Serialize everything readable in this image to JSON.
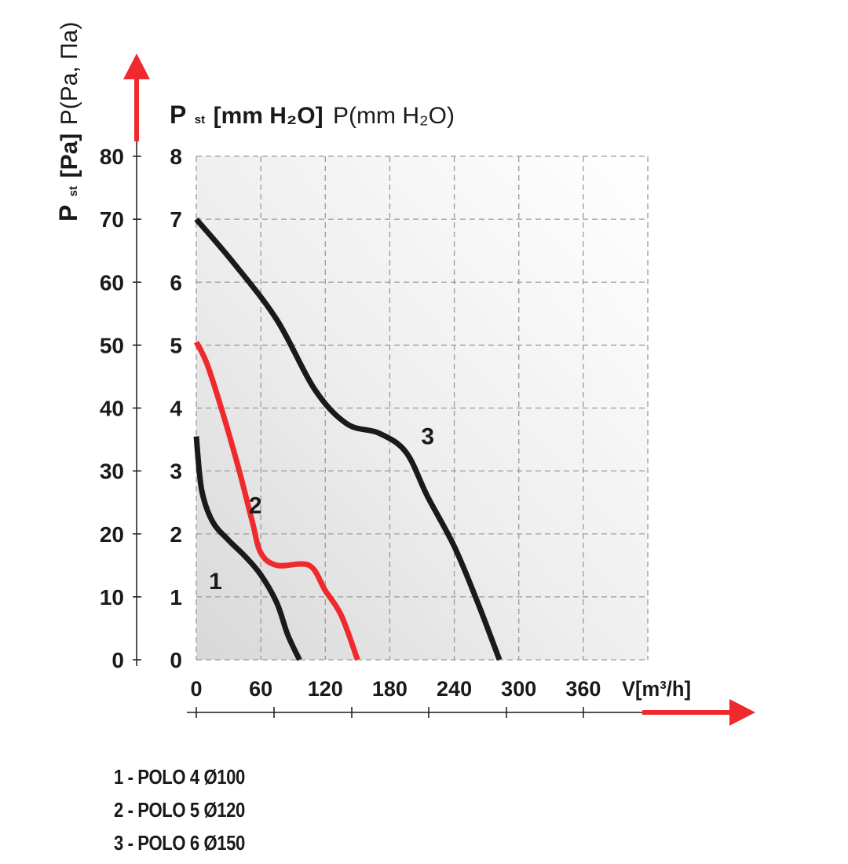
{
  "chart_data": {
    "type": "line",
    "x_axis": {
      "label": "V[m³/h]",
      "ticks": [
        "0",
        "60",
        "120",
        "180",
        "240",
        "300",
        "360"
      ],
      "range": [
        0,
        420
      ]
    },
    "y_axis_left": {
      "label_main": "P",
      "label_sub": "st",
      "label_bracket": "[Pa]",
      "label_extra": "P(Pa, Па)",
      "ticks": [
        "0",
        "10",
        "20",
        "30",
        "40",
        "50",
        "60",
        "70",
        "80"
      ],
      "range": [
        0,
        80
      ]
    },
    "y_axis_right": {
      "label_main": "P",
      "label_sub": "st",
      "label_bracket": "[mm H₂O]",
      "label_extra": "P(mm H₂O)",
      "ticks": [
        "0",
        "1",
        "2",
        "3",
        "4",
        "5",
        "6",
        "7",
        "8"
      ],
      "range": [
        0,
        8
      ]
    },
    "grid": true,
    "series": [
      {
        "name": "1",
        "color": "#1a1a1a",
        "points": [
          [
            0,
            35.5
          ],
          [
            5,
            27
          ],
          [
            15,
            22
          ],
          [
            30,
            19
          ],
          [
            45,
            16.5
          ],
          [
            60,
            13.5
          ],
          [
            75,
            9
          ],
          [
            85,
            4
          ],
          [
            96,
            0
          ]
        ]
      },
      {
        "name": "2",
        "color": "#ee2a2f",
        "points": [
          [
            0,
            50.5
          ],
          [
            10,
            47
          ],
          [
            25,
            39
          ],
          [
            40,
            30
          ],
          [
            52,
            22
          ],
          [
            60,
            17
          ],
          [
            75,
            15
          ],
          [
            105,
            15
          ],
          [
            120,
            11
          ],
          [
            135,
            7
          ],
          [
            150,
            0
          ]
        ]
      },
      {
        "name": "3",
        "color": "#1a1a1a",
        "points": [
          [
            0,
            70
          ],
          [
            35,
            63
          ],
          [
            75,
            54
          ],
          [
            110,
            43
          ],
          [
            140,
            37.5
          ],
          [
            170,
            36
          ],
          [
            195,
            33
          ],
          [
            215,
            26
          ],
          [
            240,
            18
          ],
          [
            262,
            9
          ],
          [
            282,
            0
          ]
        ]
      }
    ]
  },
  "legend": [
    "1 - POLO 4 Ø100",
    "2 - POLO 5 Ø120",
    "3 - POLO 6 Ø150"
  ]
}
